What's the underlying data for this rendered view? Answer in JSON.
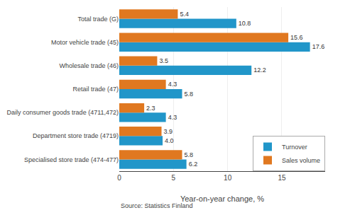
{
  "chart_data": {
    "type": "bar",
    "orientation": "horizontal",
    "categories": [
      "Specialised store trade (474-477)",
      "Department store trade (4719)",
      "Daily consumer goods trade (4711,472)",
      "Retail trade (47)",
      "Wholesale trade (46)",
      "Motor vehicle trade (45)",
      "Total trade (G)"
    ],
    "series": [
      {
        "name": "Turnover",
        "color": "#2196C9",
        "values": [
          6.2,
          4.0,
          4.3,
          5.8,
          12.2,
          17.6,
          10.8
        ],
        "value_labels": [
          "6.2",
          "4.0",
          "4.3",
          "5.8",
          "12.2",
          "17.6",
          "10.8"
        ]
      },
      {
        "name": "Sales volume",
        "color": "#E07820",
        "values": [
          5.8,
          3.9,
          2.3,
          4.3,
          3.5,
          15.6,
          5.4
        ],
        "value_labels": [
          "5.8",
          "3.9",
          "2.3",
          "4.3",
          "3.5",
          "15.6",
          "5.4"
        ]
      }
    ],
    "x_label": "Year-on-year change, %",
    "xlim": [
      0,
      19
    ],
    "xticks": [
      0,
      5,
      10,
      15
    ],
    "grid": true,
    "legend": "lower right",
    "data_labels": true,
    "annotations": [
      "Source: Statistics Finland"
    ]
  }
}
